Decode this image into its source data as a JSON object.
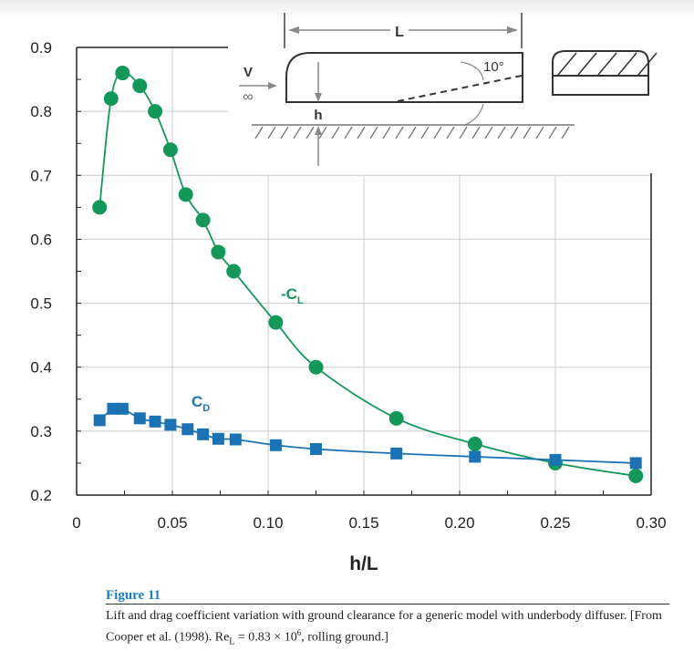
{
  "chart_data": {
    "type": "line",
    "xlabel": "h/L",
    "xlim": [
      0,
      0.3
    ],
    "ylim": [
      0.2,
      0.9
    ],
    "xticks": [
      "0",
      "0.05",
      "0.10",
      "0.15",
      "0.20",
      "0.25",
      "0.30"
    ],
    "yticks": [
      "0.2",
      "0.3",
      "0.4",
      "0.5",
      "0.6",
      "0.7",
      "0.8",
      "0.9"
    ],
    "grid": true,
    "series": [
      {
        "name": "-C_L",
        "label_main": "-C",
        "label_sub": "L",
        "marker": "circle",
        "color": "#13985a",
        "x": [
          0.012,
          0.018,
          0.024,
          0.033,
          0.041,
          0.049,
          0.057,
          0.066,
          0.074,
          0.082,
          0.104,
          0.125,
          0.167,
          0.208,
          0.25,
          0.292
        ],
        "y": [
          0.65,
          0.82,
          0.86,
          0.84,
          0.8,
          0.74,
          0.67,
          0.63,
          0.58,
          0.55,
          0.47,
          0.4,
          0.32,
          0.28,
          0.25,
          0.23
        ]
      },
      {
        "name": "C_D",
        "label_main": "C",
        "label_sub": "D",
        "marker": "square",
        "color": "#1c73b4",
        "x": [
          0.012,
          0.019,
          0.024,
          0.033,
          0.041,
          0.049,
          0.058,
          0.066,
          0.074,
          0.083,
          0.104,
          0.125,
          0.167,
          0.208,
          0.25,
          0.292
        ],
        "y": [
          0.317,
          0.335,
          0.335,
          0.32,
          0.315,
          0.31,
          0.303,
          0.295,
          0.288,
          0.287,
          0.278,
          0.272,
          0.265,
          0.26,
          0.255,
          0.25
        ]
      }
    ]
  },
  "inset": {
    "length_label": "L",
    "velocity_label": "V",
    "velocity_sub": "∞",
    "height_label": "h",
    "angle_label": "10°"
  },
  "caption": {
    "title": "Figure 11",
    "text_before": "Lift and drag coefficient variation with ground clearance for a generic model with underbody diffuser. [From Cooper et al. (1998). Re",
    "re_sub": "L",
    "text_mid": " = 0.83 × 10",
    "exponent": "6",
    "text_after": ", rolling ground.]"
  }
}
